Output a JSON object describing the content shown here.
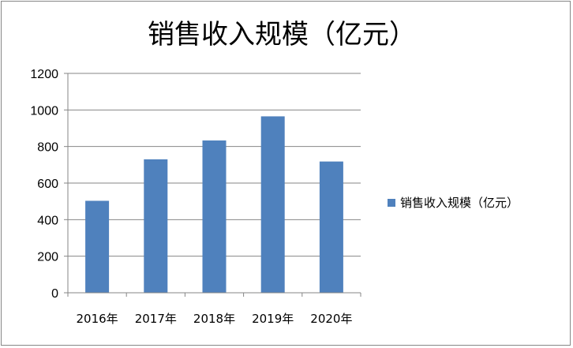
{
  "chart_data": {
    "type": "bar",
    "title": "销售收入规模（亿元）",
    "categories": [
      "2016年",
      "2017年",
      "2018年",
      "2019年",
      "2020年"
    ],
    "series": [
      {
        "name": "销售收入规模（亿元）",
        "values": [
          503,
          730,
          833,
          965,
          718
        ]
      }
    ],
    "ylim": [
      0,
      1200
    ],
    "yticks": [
      0,
      200,
      400,
      600,
      800,
      1000,
      1200
    ],
    "grid": true,
    "legend_position": "right",
    "bar_color": "#4F81BD"
  }
}
